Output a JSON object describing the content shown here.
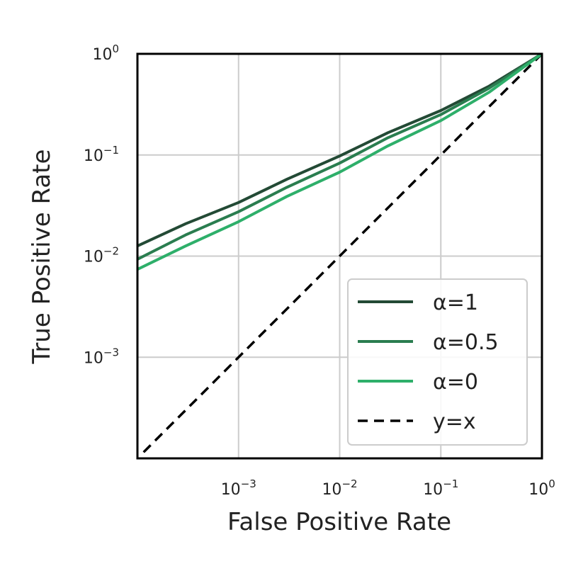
{
  "chart_data": {
    "type": "line",
    "xlabel": "False Positive Rate",
    "ylabel": "True Positive Rate",
    "x_scale": "log",
    "y_scale": "log",
    "xlim": [
      0.0001,
      1
    ],
    "ylim": [
      0.0001,
      1
    ],
    "grid": true,
    "legend_position": "lower-right",
    "x_ticks": [
      {
        "value": 0.001,
        "base": "10",
        "exp": "−3"
      },
      {
        "value": 0.01,
        "base": "10",
        "exp": "−2"
      },
      {
        "value": 0.1,
        "base": "10",
        "exp": "−1"
      },
      {
        "value": 1,
        "base": "10",
        "exp": "0"
      }
    ],
    "y_ticks": [
      {
        "value": 0.001,
        "base": "10",
        "exp": "−3"
      },
      {
        "value": 0.01,
        "base": "10",
        "exp": "−2"
      },
      {
        "value": 0.1,
        "base": "10",
        "exp": "−1"
      },
      {
        "value": 1,
        "base": "10",
        "exp": "0"
      }
    ],
    "series": [
      {
        "name": "α=1",
        "color": "#234a35",
        "dash": false,
        "x": [
          0.0001,
          0.0003,
          0.001,
          0.003,
          0.01,
          0.03,
          0.1,
          0.3,
          1
        ],
        "y": [
          0.0126,
          0.0209,
          0.0339,
          0.0575,
          0.0977,
          0.166,
          0.275,
          0.479,
          1
        ]
      },
      {
        "name": "α=0.5",
        "color": "#2a7d4f",
        "dash": false,
        "x": [
          0.0001,
          0.0003,
          0.001,
          0.003,
          0.01,
          0.03,
          0.1,
          0.3,
          1
        ],
        "y": [
          0.0093,
          0.0162,
          0.0275,
          0.0479,
          0.0832,
          0.148,
          0.251,
          0.457,
          1
        ]
      },
      {
        "name": "α=0",
        "color": "#2eaf6a",
        "dash": false,
        "x": [
          0.0001,
          0.0003,
          0.001,
          0.003,
          0.01,
          0.03,
          0.1,
          0.3,
          1
        ],
        "y": [
          0.0074,
          0.0126,
          0.0219,
          0.0389,
          0.0676,
          0.123,
          0.219,
          0.417,
          1
        ]
      },
      {
        "name": "y=x",
        "color": "#000000",
        "dash": true,
        "x": [
          0.0001,
          1
        ],
        "y": [
          0.0001,
          1
        ]
      }
    ]
  }
}
